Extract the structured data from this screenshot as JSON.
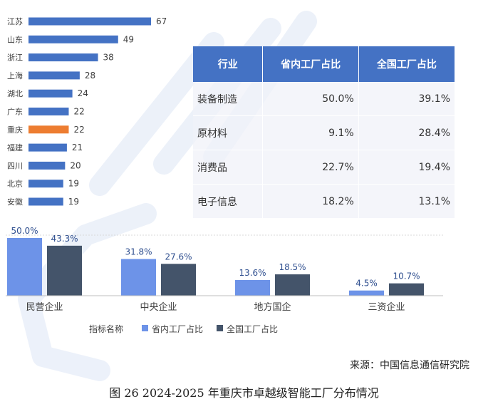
{
  "colors": {
    "province_bar": "#4472c4",
    "highlight_bar": "#ed7d31",
    "series_province": "#6d93e8",
    "series_national": "#44546a",
    "table_header": "#4472c4",
    "watermark": "#dde6f5"
  },
  "table": {
    "headers": [
      "行业",
      "省内工厂占比",
      "全国工厂占比"
    ],
    "rows": [
      [
        "装备制造",
        "50.0%",
        "39.1%"
      ],
      [
        "原材料",
        "9.1%",
        "28.4%"
      ],
      [
        "消费品",
        "22.7%",
        "19.4%"
      ],
      [
        "电子信息",
        "18.2%",
        "13.1%"
      ]
    ]
  },
  "source": "来源：中国信息通信研究院",
  "caption": "图 26 2024-2025 年重庆市卓越级智能工厂分布情况",
  "chart_data": [
    {
      "type": "bar",
      "orientation": "horizontal",
      "categories": [
        "江苏",
        "山东",
        "浙江",
        "上海",
        "湖北",
        "广东",
        "重庆",
        "福建",
        "四川",
        "北京",
        "安徽"
      ],
      "values": [
        67,
        49,
        38,
        28,
        24,
        22,
        22,
        21,
        20,
        19,
        19
      ],
      "highlight": "重庆",
      "xlim": [
        0,
        67
      ],
      "grid": false
    },
    {
      "type": "bar",
      "orientation": "vertical",
      "categories": [
        "民营企业",
        "中央企业",
        "地方国企",
        "三资企业"
      ],
      "legend_title": "指标名称",
      "legend_position": "bottom",
      "series": [
        {
          "name": "省内工厂占比",
          "values": [
            50.0,
            31.8,
            13.6,
            4.5
          ],
          "labels": [
            "50.0%",
            "31.8%",
            "13.6%",
            "4.5%"
          ]
        },
        {
          "name": "全国工厂占比",
          "values": [
            43.3,
            27.6,
            18.5,
            10.7
          ],
          "labels": [
            "43.3%",
            "27.6%",
            "18.5%",
            "10.7%"
          ]
        }
      ],
      "ylim": [
        0,
        50
      ],
      "grid": false
    }
  ]
}
